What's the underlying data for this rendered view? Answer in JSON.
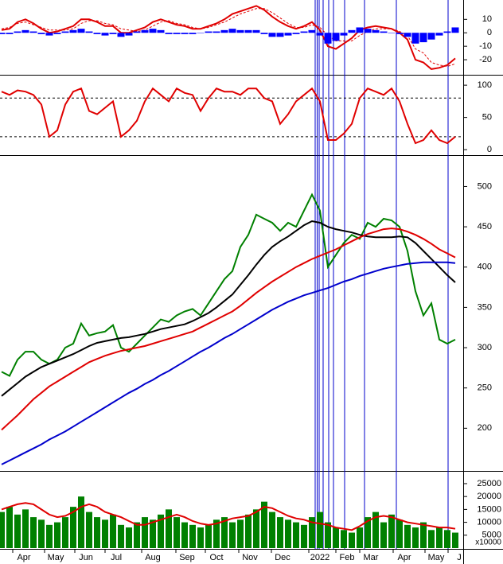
{
  "chart_data": [
    {
      "type": "line",
      "ylim": [
        -30,
        22
      ],
      "yticks": [
        10,
        0,
        -10,
        -20
      ],
      "series": [
        {
          "name": "MACD",
          "color": "#e00000",
          "values": [
            2,
            3,
            8,
            10,
            7,
            3,
            0,
            1,
            3,
            5,
            10,
            10,
            8,
            5,
            5,
            0,
            0,
            2,
            4,
            8,
            10,
            8,
            6,
            5,
            3,
            3,
            5,
            7,
            10,
            14,
            16,
            18,
            20,
            17,
            12,
            8,
            5,
            3,
            5,
            8,
            2,
            -10,
            -12,
            -8,
            -4,
            2,
            4,
            5,
            4,
            3,
            0,
            -5,
            -20,
            -22,
            -27,
            -26,
            -24,
            -19
          ]
        },
        {
          "name": "Signal",
          "color": "#e00000",
          "dashed": true,
          "values": [
            3,
            4,
            7,
            8,
            6,
            4,
            2,
            2,
            2,
            3,
            7,
            9,
            9,
            7,
            6,
            3,
            2,
            1,
            2,
            5,
            8,
            9,
            7,
            6,
            4,
            3,
            4,
            6,
            8,
            11,
            14,
            16,
            18,
            18,
            15,
            11,
            7,
            4,
            4,
            6,
            4,
            -2,
            -6,
            -6,
            -6,
            -2,
            1,
            3,
            3,
            3,
            1,
            -2,
            -12,
            -15,
            -22,
            -24,
            -25,
            -23
          ]
        },
        {
          "name": "Histogram",
          "type": "bar",
          "color": "#0000ff",
          "values": [
            -1,
            -1,
            1,
            2,
            1,
            -1,
            -2,
            -1,
            1,
            2,
            3,
            1,
            -1,
            -2,
            -1,
            -3,
            -2,
            1,
            2,
            3,
            2,
            -1,
            -1,
            -1,
            -1,
            0,
            1,
            1,
            2,
            3,
            2,
            2,
            2,
            -1,
            -3,
            -3,
            -2,
            -1,
            1,
            2,
            -2,
            -8,
            -6,
            -2,
            2,
            4,
            3,
            2,
            1,
            0,
            -1,
            -3,
            -8,
            -7,
            -5,
            -2,
            1,
            4
          ]
        }
      ]
    },
    {
      "type": "line",
      "ylim": [
        -6,
        110
      ],
      "yticks": [
        100,
        50,
        0
      ],
      "reference_lines": [
        80,
        20
      ],
      "series": [
        {
          "name": "Stochastic",
          "color": "#e00000",
          "values": [
            90,
            85,
            92,
            90,
            85,
            70,
            20,
            30,
            70,
            90,
            95,
            60,
            55,
            65,
            75,
            20,
            30,
            45,
            75,
            95,
            85,
            75,
            95,
            88,
            85,
            60,
            80,
            95,
            90,
            90,
            85,
            95,
            95,
            80,
            75,
            40,
            55,
            75,
            85,
            95,
            75,
            15,
            15,
            25,
            40,
            80,
            95,
            90,
            85,
            95,
            75,
            40,
            10,
            15,
            30,
            15,
            10,
            20
          ]
        }
      ]
    },
    {
      "type": "line",
      "ylim": [
        149,
        535
      ],
      "yticks": [
        500,
        450,
        400,
        350,
        300,
        250,
        200
      ],
      "series": [
        {
          "name": "Price",
          "color": "#008000",
          "values": [
            270,
            265,
            285,
            295,
            295,
            285,
            280,
            285,
            300,
            305,
            330,
            315,
            318,
            320,
            328,
            300,
            295,
            305,
            315,
            325,
            335,
            332,
            340,
            345,
            348,
            340,
            355,
            370,
            385,
            395,
            425,
            440,
            465,
            460,
            455,
            445,
            455,
            450,
            470,
            490,
            470,
            400,
            415,
            430,
            440,
            435,
            455,
            450,
            460,
            458,
            450,
            420,
            370,
            340,
            355,
            310,
            305,
            310
          ]
        },
        {
          "name": "MA50",
          "color": "#000000",
          "values": [
            240,
            248,
            256,
            264,
            270,
            276,
            280,
            284,
            288,
            292,
            297,
            302,
            306,
            308,
            310,
            312,
            313,
            315,
            317,
            320,
            323,
            325,
            327,
            329,
            333,
            338,
            343,
            350,
            358,
            366,
            378,
            390,
            403,
            415,
            425,
            432,
            438,
            445,
            452,
            457,
            455,
            450,
            447,
            445,
            443,
            440,
            438,
            437,
            437,
            437,
            438,
            437,
            430,
            420,
            410,
            400,
            390,
            381
          ]
        },
        {
          "name": "MA100",
          "color": "#e00000",
          "values": [
            198,
            207,
            216,
            226,
            236,
            244,
            252,
            258,
            264,
            270,
            276,
            282,
            286,
            290,
            293,
            296,
            298,
            300,
            302,
            305,
            308,
            311,
            314,
            317,
            320,
            325,
            330,
            335,
            340,
            345,
            352,
            360,
            368,
            375,
            382,
            388,
            394,
            400,
            405,
            410,
            414,
            418,
            422,
            427,
            432,
            437,
            441,
            444,
            447,
            448,
            447,
            444,
            440,
            435,
            429,
            422,
            417,
            412
          ]
        },
        {
          "name": "MA200",
          "color": "#0000cc",
          "values": [
            155,
            160,
            165,
            170,
            175,
            180,
            186,
            191,
            196,
            202,
            208,
            214,
            220,
            226,
            232,
            238,
            244,
            249,
            255,
            260,
            266,
            271,
            277,
            283,
            289,
            295,
            300,
            306,
            312,
            317,
            323,
            329,
            335,
            341,
            347,
            352,
            357,
            361,
            365,
            368,
            371,
            374,
            378,
            382,
            385,
            389,
            392,
            395,
            398,
            400,
            402,
            404,
            405,
            406,
            406,
            406,
            406,
            405
          ]
        }
      ]
    },
    {
      "type": "bar",
      "ylim": [
        0,
        29000
      ],
      "yticks": [
        25000,
        20000,
        15000,
        10000,
        5000
      ],
      "unit_label": "x10000",
      "series": [
        {
          "name": "Volume",
          "type": "bar",
          "color": "#008000",
          "values": [
            14000,
            16000,
            13000,
            15000,
            12000,
            11000,
            9000,
            10000,
            12000,
            16000,
            20000,
            14000,
            12000,
            11000,
            13000,
            9000,
            8000,
            10000,
            12000,
            11000,
            13000,
            15000,
            12000,
            10000,
            9000,
            8000,
            9000,
            11000,
            12000,
            10000,
            11000,
            13000,
            15000,
            18000,
            14000,
            12000,
            11000,
            10000,
            9000,
            12000,
            14000,
            10000,
            8000,
            7000,
            6000,
            8000,
            12000,
            14000,
            10000,
            13000,
            11000,
            9000,
            8000,
            10000,
            7000,
            8000,
            7000,
            6000
          ]
        },
        {
          "name": "Volume MA",
          "color": "#e00000",
          "values": [
            15000,
            16000,
            17000,
            17500,
            17000,
            15000,
            13000,
            12000,
            12500,
            14000,
            16000,
            17000,
            16000,
            14000,
            13000,
            12000,
            10500,
            9000,
            9000,
            10000,
            11000,
            12000,
            13000,
            12000,
            10500,
            9500,
            9000,
            9500,
            10500,
            11500,
            12000,
            12500,
            14000,
            16000,
            15500,
            14000,
            12500,
            11500,
            11000,
            10000,
            9500,
            9000,
            8000,
            7500,
            7000,
            8500,
            10500,
            12000,
            12500,
            12000,
            11000,
            10000,
            9500,
            9000,
            8500,
            8000,
            8000,
            7500
          ]
        }
      ]
    }
  ],
  "x_labels": [
    "Apr",
    "May",
    "Jun",
    "Jul",
    "Aug",
    "Sep",
    "Oct",
    "Nov",
    "Dec",
    "2022",
    "Feb",
    "Mar",
    "Apr",
    "May",
    "J"
  ]
}
